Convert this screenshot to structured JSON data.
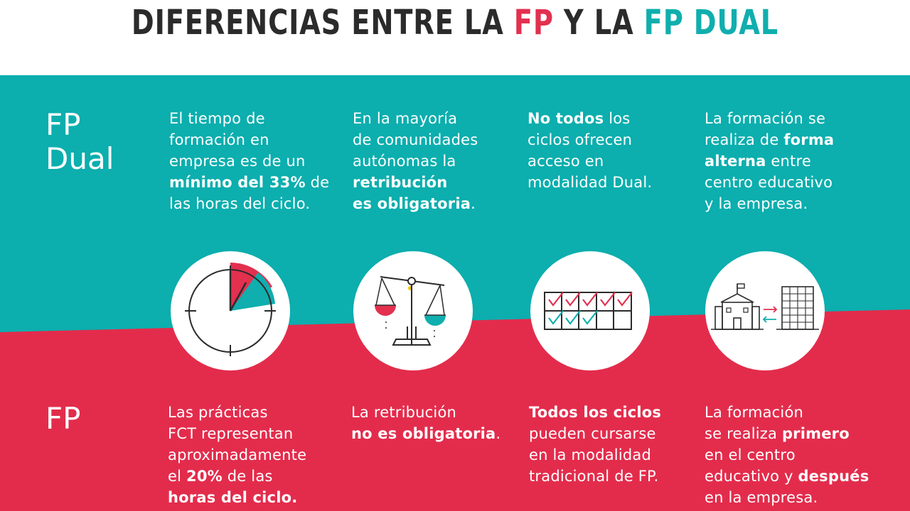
{
  "header": {
    "title_part1": "DIFERENCIAS ENTRE LA ",
    "title_fp": "FP",
    "title_part2": " Y LA ",
    "title_fpdual": "FP DUAL"
  },
  "colors": {
    "teal": "#10aeae",
    "red": "#e3304f",
    "dark": "#2b2b2b",
    "white": "#ffffff"
  },
  "dual": {
    "label_line1": "FP",
    "label_line2": "Dual",
    "col1": {
      "t1": "El tiempo de\nformación en\nempresa es de un\n",
      "b1": "mínimo del 33%",
      "t2": " de\nlas horas del ciclo."
    },
    "col2": {
      "t1": "En la mayoría\nde comunidades\nautónomas la\n",
      "b1": "retribución\nes obligatoria",
      "t2": "."
    },
    "col3": {
      "b1": "No todos",
      "t1": " los\nciclos ofrecen\nacceso en\nmodalidad Dual."
    },
    "col4": {
      "t1": "La formación se\nrealiza de ",
      "b1": "forma\nalterna",
      "t2": " entre\ncentro educativo\ny la empresa."
    }
  },
  "fp": {
    "label": "FP",
    "col1": {
      "t1": "Las prácticas\nFCT representan\naproximadamente\nel ",
      "b1": "20%",
      "t2": " de las\n",
      "b2": "horas del ciclo."
    },
    "col2": {
      "t1": "La retribución\n",
      "b1": "no es obligatoria",
      "t2": "."
    },
    "col3": {
      "b1": "Todos los ciclos",
      "t1": "\npueden cursarse\nen la modalidad\ntradicional de FP."
    },
    "col4": {
      "t1": "La formación\nse realiza ",
      "b1": "primero",
      "t2": "\nen el centro\neducativo y ",
      "b2": "después",
      "t3": "\nen la empresa."
    }
  },
  "icons": [
    "clock-icon",
    "scale-icon",
    "checklist-icon",
    "school-company-icon"
  ]
}
